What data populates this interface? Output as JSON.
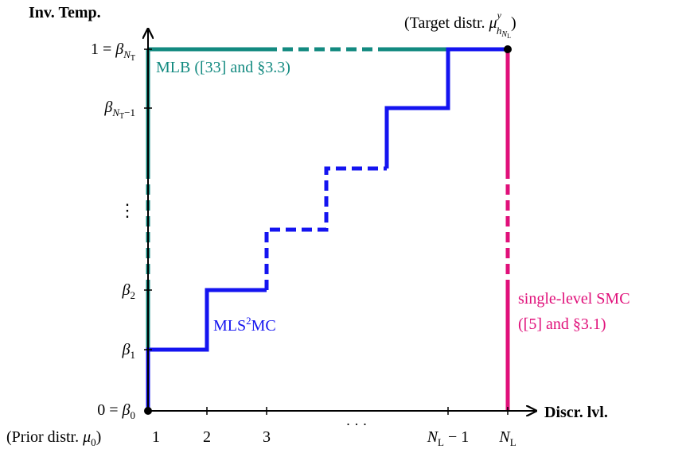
{
  "axes": {
    "y_title": "Inv. Temp.",
    "x_title": "Discr. lvl."
  },
  "y_ticks": {
    "top": {
      "prefix": "1 = ",
      "sym": "β",
      "sub": "N",
      "subsub": "T",
      "suffix": ""
    },
    "second": {
      "sym": "β",
      "sub": "N",
      "subsub": "T",
      "subtail": "−1"
    },
    "b2": {
      "sym": "β",
      "sub": "2"
    },
    "b1": {
      "sym": "β",
      "sub": "1"
    },
    "b0": {
      "prefix": "0 = ",
      "sym": "β",
      "sub": "0"
    },
    "vdots": "⋮"
  },
  "x_ticks": {
    "t1": "1",
    "t2": "2",
    "t3": "3",
    "hdots": "· · ·",
    "tn1": {
      "sym": "N",
      "sub": "L",
      "tail": " − 1"
    },
    "tn": {
      "sym": "N",
      "sub": "L"
    }
  },
  "annotations": {
    "target": {
      "text": "(Target distr. ",
      "sym": "μ",
      "sup": "y",
      "sub": "h",
      "subsub": "N",
      "subsubsub": "L",
      "close": ")"
    },
    "prior": {
      "text": "(Prior distr. ",
      "sym": "μ",
      "sub": "0",
      "close": ")"
    }
  },
  "methods": {
    "mlb": {
      "label": "MLB ([33] and §3.3)",
      "color": "#138a80"
    },
    "mls2mc": {
      "label_a": "MLS",
      "label_sup": "2",
      "label_b": "MC",
      "color": "#1414f0"
    },
    "slsmc": {
      "line1": "single-level SMC",
      "line2": "([5] and §3.1)",
      "color": "#e0107a"
    }
  }
}
